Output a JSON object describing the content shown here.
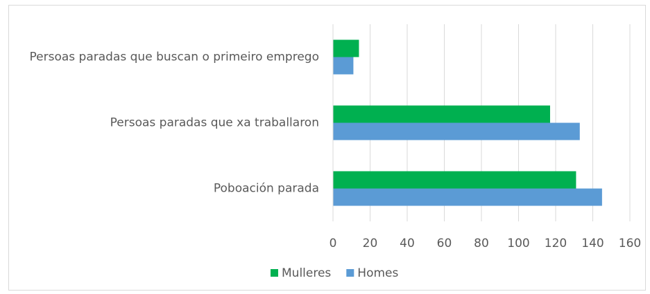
{
  "chart_data": {
    "type": "hbar",
    "categories": [
      "Persoas paradas que buscan o primeiro emprego",
      "Persoas paradas que xa traballaron",
      "Poboación parada"
    ],
    "series": [
      {
        "name": "Mulleres",
        "color": "#00b050",
        "values": [
          14,
          117,
          131
        ]
      },
      {
        "name": "Homes",
        "color": "#5b9bd5",
        "values": [
          11,
          133,
          145
        ]
      }
    ],
    "xlim": [
      0,
      160
    ],
    "xticks": [
      0,
      20,
      40,
      60,
      80,
      100,
      120,
      140,
      160
    ],
    "grid": true,
    "legend": "bottom"
  }
}
